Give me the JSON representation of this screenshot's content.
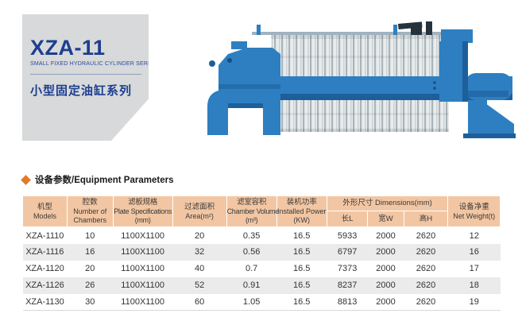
{
  "header_card": {
    "model": "XZA-11",
    "series_en": "SMALL FIXED HYDRAULIC CYLINDER SERIES",
    "series_cn": "小型固定油缸系列"
  },
  "section": {
    "title": "设备参数/Equipment Parameters"
  },
  "machine": {
    "name": "filter-press-illustration"
  },
  "table": {
    "header": {
      "models": [
        "机型",
        "Models"
      ],
      "chambers": [
        "腔数",
        "Number of",
        "Chambers"
      ],
      "plate": [
        "滤板规格",
        "Plate Specifications",
        "(mm)"
      ],
      "area": [
        "过滤面积",
        "Area(m²)"
      ],
      "volume": [
        "滤室容积",
        "Chamber Volume",
        "(m³)"
      ],
      "power": [
        "装机功率",
        "Installed Power",
        "(KW)"
      ],
      "dimensions": "外形尺寸 Dimensions(mm)",
      "dim_l": "长L",
      "dim_w": "宽W",
      "dim_h": "高H",
      "weight": [
        "设备净重",
        "Net Weight(t)"
      ]
    },
    "rows": [
      [
        "XZA-1110",
        "10",
        "1100X1100",
        "20",
        "0.35",
        "16.5",
        "5933",
        "2000",
        "2620",
        "12"
      ],
      [
        "XZA-1116",
        "16",
        "1100X1100",
        "32",
        "0.56",
        "16.5",
        "6797",
        "2000",
        "2620",
        "16"
      ],
      [
        "XZA-1120",
        "20",
        "1100X1100",
        "40",
        "0.7",
        "16.5",
        "7373",
        "2000",
        "2620",
        "17"
      ],
      [
        "XZA-1126",
        "26",
        "1100X1100",
        "52",
        "0.91",
        "16.5",
        "8237",
        "2000",
        "2620",
        "18"
      ],
      [
        "XZA-1130",
        "30",
        "1100X1100",
        "60",
        "1.05",
        "16.5",
        "8813",
        "2000",
        "2620",
        "19"
      ]
    ]
  },
  "colors": {
    "accent_navy": "#1d3e8f",
    "card_bg": "#d7d9da",
    "diamond_orange": "#e07b28",
    "table_header_bg": "#f2c6a3",
    "row_stripe": "#ebebeb",
    "machine_blue": "#2e7fc1",
    "machine_blue_dark": "#1d5f9b"
  }
}
